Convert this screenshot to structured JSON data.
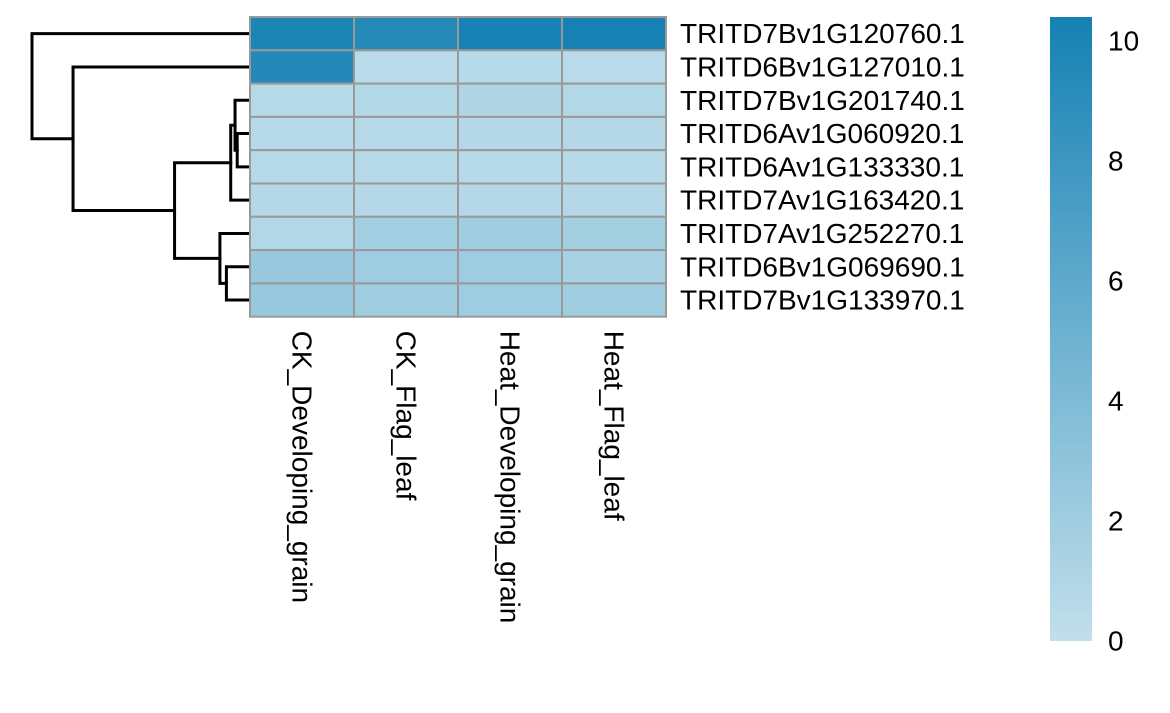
{
  "chart_data": {
    "type": "heatmap",
    "title": "",
    "columns": [
      "CK_Developing_grain",
      "CK_Flag_leaf",
      "Heat_Developing_grain",
      "Heat_Flag_leaf"
    ],
    "rows": [
      "TRITD7Bv1G120760.1",
      "TRITD6Bv1G127010.1",
      "TRITD7Bv1G201740.1",
      "TRITD6Av1G060920.1",
      "TRITD6Av1G133330.1",
      "TRITD7Av1G163420.1",
      "TRITD7Av1G252270.1",
      "TRITD6Bv1G069690.1",
      "TRITD7Bv1G133970.1"
    ],
    "values": [
      [
        10.0,
        9.4,
        10.3,
        10.4
      ],
      [
        9.5,
        0.5,
        0.6,
        0.5
      ],
      [
        0.7,
        0.9,
        1.1,
        0.9
      ],
      [
        0.6,
        0.7,
        0.8,
        0.8
      ],
      [
        0.7,
        0.7,
        0.6,
        0.6
      ],
      [
        0.8,
        0.8,
        0.8,
        0.8
      ],
      [
        0.9,
        1.9,
        2.0,
        1.8
      ],
      [
        2.5,
        2.1,
        2.1,
        1.5
      ],
      [
        2.5,
        2.0,
        2.1,
        2.0
      ]
    ],
    "color_scale": {
      "min": 0,
      "max": 10.4,
      "low_color": "#c1dfeb",
      "high_color": "#1581b4",
      "ticks": [
        0,
        2,
        4,
        6,
        8,
        10
      ],
      "tick_labels": [
        "0",
        "2",
        "4",
        "6",
        "8",
        "10"
      ]
    },
    "cell_border_color": "#999999",
    "row_dendrogram": {
      "merges": [
        {
          "left": "TRITD6Av1G060920.1",
          "right": "TRITD6Av1G133330.1",
          "height": 0.05
        },
        {
          "left": "TRITD7Bv1G201740.1",
          "right": "m0",
          "height": 0.06
        },
        {
          "left": "m1",
          "right": "TRITD7Av1G163420.1",
          "height": 0.08
        },
        {
          "left": "TRITD6Bv1G069690.1",
          "right": "TRITD7Bv1G133970.1",
          "height": 0.1
        },
        {
          "left": "TRITD7Av1G252270.1",
          "right": "m3",
          "height": 0.13
        },
        {
          "left": "m2",
          "right": "m4",
          "height": 0.34
        },
        {
          "left": "TRITD6Bv1G127010.1",
          "right": "m5",
          "height": 0.81
        },
        {
          "left": "TRITD7Bv1G120760.1",
          "right": "m6",
          "height": 1.0
        }
      ],
      "color": "#000000"
    },
    "legend_position": "right",
    "grid": false
  }
}
